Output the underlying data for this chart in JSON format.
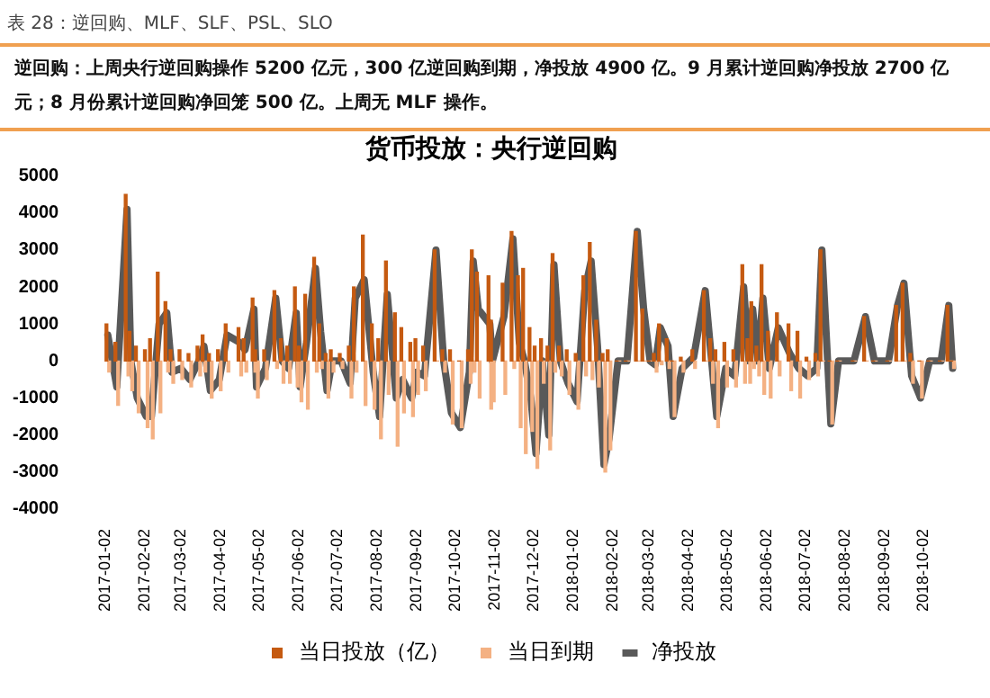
{
  "chart_data": {
    "type": "bar",
    "title": "货币投放：央行逆回购",
    "annotations": [
      "表 28：逆回购、MLF、SLF、PSL、SLO",
      "逆回购：上周央行逆回购操作 5200 亿元，300 亿逆回购到期，净投放 4900 亿。9 月累计逆回购净投放 2700 亿元；8 月份累计逆回购净回笼 500 亿。上周无 MLF 操作。"
    ],
    "x": [
      "2017-01-04",
      "2017-01-11",
      "2017-01-19",
      "2017-01-22",
      "2017-01-27",
      "2017-02-03",
      "2017-02-07",
      "2017-02-13",
      "2017-02-19",
      "2017-02-23",
      "2017-03-02",
      "2017-03-09",
      "2017-03-16",
      "2017-03-20",
      "2017-03-25",
      "2017-04-01",
      "2017-04-07",
      "2017-04-17",
      "2017-04-21",
      "2017-04-28",
      "2017-04-30",
      "2017-05-07",
      "2017-05-15",
      "2017-05-20",
      "2017-05-25",
      "2017-05-31",
      "2017-06-03",
      "2017-06-08",
      "2017-06-15",
      "2017-06-19",
      "2017-06-24",
      "2017-06-28",
      "2017-07-05",
      "2017-07-12",
      "2017-07-16",
      "2017-07-23",
      "2017-07-30",
      "2017-08-04",
      "2017-08-10",
      "2017-08-17",
      "2017-08-22",
      "2017-08-29",
      "2017-09-02",
      "2017-09-08",
      "2017-09-17",
      "2017-09-23",
      "2017-09-29",
      "2017-10-06",
      "2017-10-13",
      "2017-10-16",
      "2017-10-20",
      "2017-10-29",
      "2017-10-31",
      "2017-11-09",
      "2017-11-16",
      "2017-11-21",
      "2017-11-25",
      "2017-11-30",
      "2017-12-04",
      "2017-12-09",
      "2017-12-14",
      "2017-12-18",
      "2017-12-23",
      "2017-12-29",
      "2018-01-05",
      "2018-01-11",
      "2018-01-16",
      "2018-01-21",
      "2018-01-26",
      "2018-01-30",
      "2018-02-06",
      "2018-02-13",
      "2018-02-21",
      "2018-02-26",
      "2018-03-03",
      "2018-03-07",
      "2018-03-11",
      "2018-03-17",
      "2018-03-21",
      "2018-03-28",
      "2018-04-06",
      "2018-04-15",
      "2018-04-20",
      "2018-04-24",
      "2018-05-01",
      "2018-05-08",
      "2018-05-15",
      "2018-05-19",
      "2018-05-22",
      "2018-05-26",
      "2018-05-30",
      "2018-06-04",
      "2018-06-11",
      "2018-06-20",
      "2018-06-27",
      "2018-07-04",
      "2018-07-11",
      "2018-07-15",
      "2018-07-22",
      "2018-07-28",
      "2018-08-09",
      "2018-08-18",
      "2018-08-25",
      "2018-09-05",
      "2018-09-12",
      "2018-09-17",
      "2018-09-23",
      "2018-09-30",
      "2018-10-07",
      "2018-10-16",
      "2018-10-22",
      "2018-10-25"
    ],
    "series": [
      {
        "name": "当日投放（亿）",
        "color": "#c55a11",
        "values": [
          1000,
          500,
          4500,
          800,
          400,
          300,
          600,
          2400,
          1600,
          300,
          300,
          200,
          400,
          700,
          200,
          300,
          1000,
          900,
          600,
          1700,
          300,
          300,
          1900,
          600,
          400,
          2000,
          400,
          1800,
          2800,
          1000,
          200,
          300,
          200,
          400,
          2000,
          3400,
          1000,
          600,
          2700,
          1300,
          900,
          500,
          600,
          400,
          3000,
          300,
          300,
          0,
          300,
          3000,
          2400,
          2300,
          1100,
          2100,
          3500,
          2300,
          2500,
          900,
          400,
          600,
          400,
          2900,
          400,
          300,
          200,
          2300,
          3200,
          1100,
          200,
          300,
          0,
          0,
          3500,
          1400,
          0,
          200,
          1000,
          600,
          0,
          100,
          300,
          1900,
          600,
          300,
          500,
          300,
          2600,
          600,
          1600,
          400,
          2600,
          800,
          1300,
          1000,
          800,
          100,
          200,
          3000,
          0,
          0,
          0,
          1200,
          0,
          0,
          1500,
          2100,
          200,
          0,
          0,
          0,
          1500,
          0
        ]
      },
      {
        "name": "当日到期",
        "color": "#f4b183",
        "values": [
          -300,
          -1200,
          -400,
          -800,
          -1400,
          -1800,
          -2100,
          -1400,
          -300,
          -600,
          -500,
          -700,
          -400,
          -300,
          -1000,
          -800,
          -300,
          -400,
          -300,
          -300,
          -1000,
          -500,
          -200,
          -600,
          -600,
          -700,
          -1100,
          -1300,
          -300,
          -200,
          -1000,
          -300,
          -200,
          -1000,
          -300,
          -1200,
          -1300,
          -2100,
          -900,
          -2300,
          -1400,
          -1500,
          -900,
          -800,
          0,
          -300,
          -1700,
          -1800,
          -600,
          -300,
          -1000,
          -1300,
          -1100,
          -900,
          -200,
          -1800,
          -2500,
          -1900,
          -2900,
          -600,
          -2400,
          -300,
          -400,
          -900,
          -1300,
          -400,
          -500,
          -700,
          -3000,
          -2400,
          0,
          0,
          0,
          0,
          0,
          -300,
          -100,
          -200,
          -1500,
          -300,
          -200,
          0,
          -600,
          -1800,
          -700,
          -700,
          -600,
          -600,
          -200,
          -400,
          -900,
          -1000,
          -400,
          -800,
          -1000,
          -500,
          -400,
          0,
          -1700,
          0,
          0,
          0,
          0,
          0,
          0,
          0,
          -600,
          -1000,
          0,
          0,
          0,
          -200
        ]
      },
      {
        "name": "净投放",
        "type": "line",
        "color": "#595959",
        "values": [
          700,
          -700,
          4100,
          0,
          -1000,
          -1500,
          -1500,
          1000,
          1300,
          -300,
          -200,
          -500,
          0,
          400,
          -800,
          -500,
          700,
          500,
          300,
          1400,
          -700,
          -200,
          1700,
          0,
          -200,
          1300,
          -700,
          500,
          2500,
          800,
          -800,
          0,
          0,
          -600,
          1700,
          2200,
          -300,
          -1500,
          1800,
          -1000,
          -500,
          -1000,
          -300,
          -400,
          3000,
          0,
          -1400,
          -1800,
          -300,
          2700,
          1400,
          1000,
          0,
          1200,
          3300,
          500,
          0,
          -1000,
          -2500,
          0,
          -2000,
          2600,
          0,
          -600,
          -1100,
          1900,
          2700,
          400,
          -2800,
          -2100,
          0,
          0,
          3500,
          1400,
          0,
          -100,
          900,
          400,
          -1500,
          -200,
          100,
          1900,
          0,
          -1500,
          -200,
          -400,
          2000,
          0,
          1400,
          0,
          1700,
          -200,
          900,
          200,
          -200,
          -400,
          -200,
          3000,
          -1700,
          0,
          0,
          1200,
          0,
          0,
          1500,
          2100,
          -400,
          -1000,
          0,
          0,
          1500,
          -200
        ]
      }
    ],
    "xlim": [
      "2016-12-28",
      "2018-10-27"
    ],
    "xticks": [
      "2017-01-02",
      "2017-02-02",
      "2017-03-02",
      "2017-04-02",
      "2017-05-02",
      "2017-06-02",
      "2017-07-02",
      "2017-08-02",
      "2017-09-02",
      "2017-10-02",
      "2017-11-02",
      "2017-12-02",
      "2018-01-02",
      "2018-02-02",
      "2018-03-02",
      "2018-04-02",
      "2018-05-02",
      "2018-06-02",
      "2018-07-02",
      "2018-08-02",
      "2018-09-02",
      "2018-10-02"
    ],
    "ylim": [
      -4000,
      5000
    ],
    "yticks": [
      -4000,
      -3000,
      -2000,
      -1000,
      0,
      1000,
      2000,
      3000,
      4000,
      5000
    ],
    "marker": "none",
    "legend": "bottom"
  }
}
